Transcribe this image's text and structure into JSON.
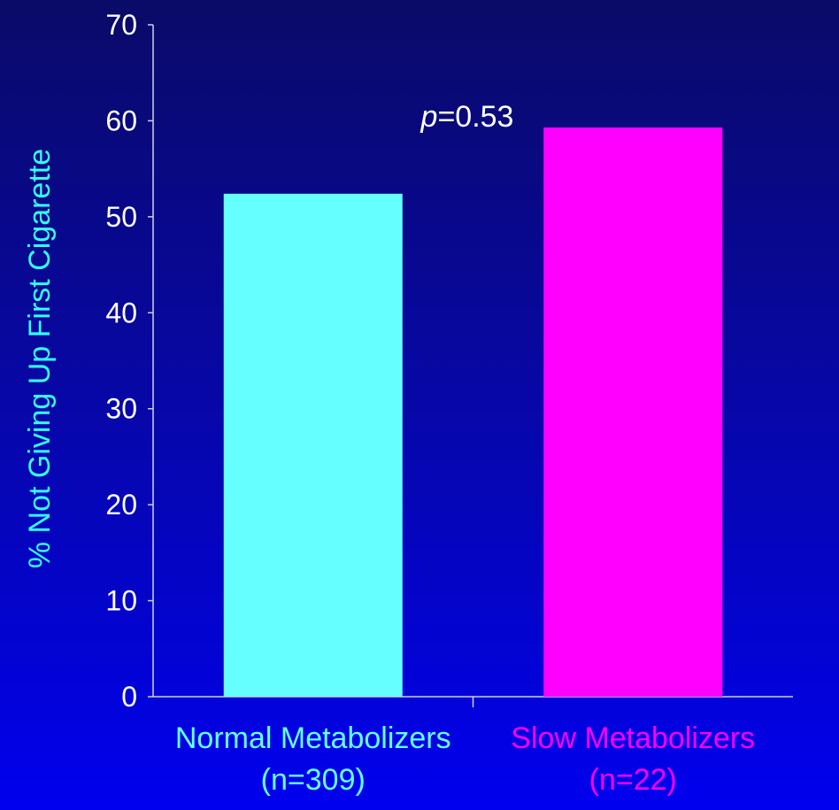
{
  "chart_data": {
    "type": "bar",
    "title": "",
    "xlabel": "",
    "ylabel": "% Not Giving Up First Cigarette",
    "ylim": [
      0,
      70
    ],
    "yticks": [
      0,
      10,
      20,
      30,
      40,
      50,
      60,
      70
    ],
    "categories": [
      {
        "line1": "Normal Metabolizers",
        "line2": "(n=309)"
      },
      {
        "line1": "Slow Metabolizers",
        "line2": "(n=22)"
      }
    ],
    "values": [
      52.4,
      59.3
    ],
    "colors": [
      "#66ffff",
      "#ff00ff"
    ],
    "annotation": {
      "italic": "p",
      "text": "=0.53"
    },
    "grid": false,
    "legend": "none"
  }
}
